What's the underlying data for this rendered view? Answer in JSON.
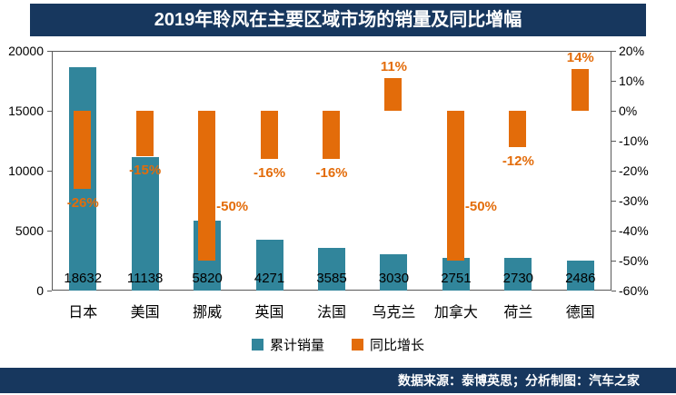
{
  "title": "2019年聆风在主要区域市场的销量及同比增幅",
  "footer": "数据来源：泰博英思；分析制图：汽车之家",
  "colors": {
    "navy": "#17375E",
    "teal": "#31859B",
    "orange": "#E36C0A"
  },
  "legend": [
    {
      "label": "累计销量",
      "color": "#31859B"
    },
    {
      "label": "同比增长",
      "color": "#E36C0A"
    }
  ],
  "chart_data": {
    "type": "bar",
    "title": "2019年聆风在主要区域市场的销量及同比增幅",
    "categories": [
      "日本",
      "美国",
      "挪威",
      "英国",
      "法国",
      "乌克兰",
      "加拿大",
      "荷兰",
      "德国"
    ],
    "series": [
      {
        "name": "累计销量",
        "axis": "left",
        "values": [
          18632,
          11138,
          5820,
          4271,
          3585,
          3030,
          2751,
          2730,
          2486
        ],
        "labels": [
          "18632",
          "11138",
          "5820",
          "4271",
          "3585",
          "3030",
          "2751",
          "2730",
          "2486"
        ]
      },
      {
        "name": "同比增长",
        "axis": "right",
        "values": [
          -26,
          -15,
          -50,
          -16,
          -16,
          11,
          -50,
          -12,
          14
        ],
        "labels": [
          "-26%",
          "-15%",
          "-50%",
          "-16%",
          "-16%",
          "11%",
          "-50%",
          "-12%",
          "14%"
        ]
      }
    ],
    "left_axis": {
      "min": 0,
      "max": 20000,
      "ticks": [
        20000,
        15000,
        10000,
        5000,
        0
      ]
    },
    "right_axis": {
      "min": -60,
      "max": 20,
      "ticks": [
        "20%",
        "10%",
        "0%",
        "-10%",
        "-20%",
        "-30%",
        "-40%",
        "-50%",
        "-60%"
      ]
    },
    "grid": false,
    "legend_position": "bottom"
  }
}
